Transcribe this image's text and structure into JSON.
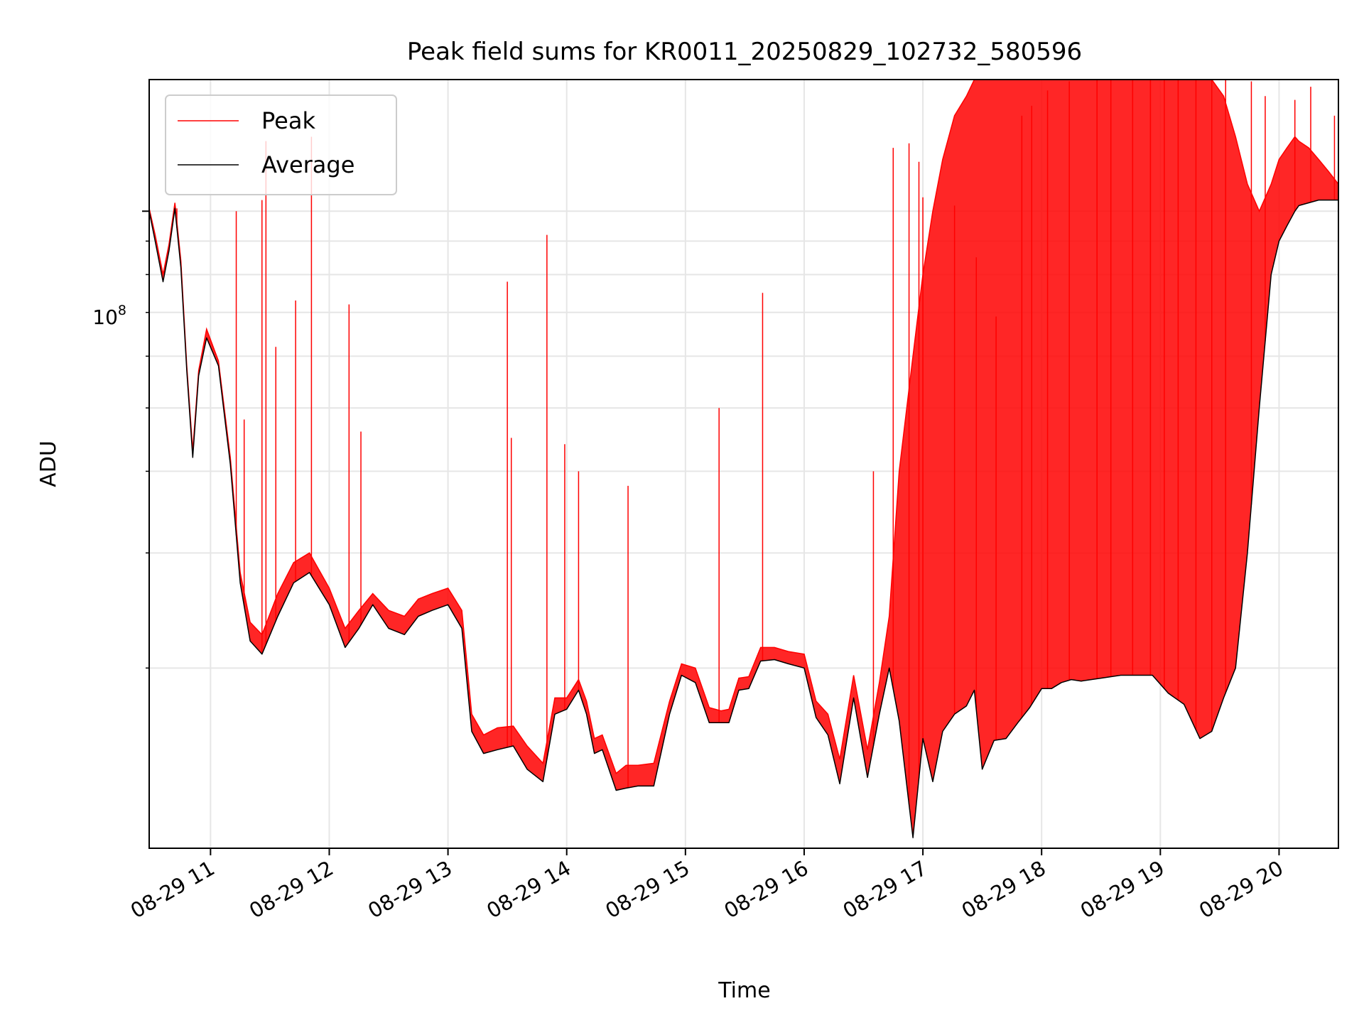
{
  "chart_data": {
    "type": "line",
    "title": "Peak field sums for KR0011_20250829_102732_580596",
    "xlabel": "Time",
    "ylabel": "ADU",
    "y_scale": "log",
    "ylim": [
      10600000,
      159000000
    ],
    "xlim": [
      "2025-08-29 10:29",
      "2025-08-29 20:30"
    ],
    "x_ticks": [
      "08-29 11",
      "08-29 12",
      "08-29 13",
      "08-29 14",
      "08-29 15",
      "08-29 16",
      "08-29 17",
      "08-29 18",
      "08-29 19",
      "08-29 20"
    ],
    "y_major_tick": {
      "base": "10",
      "exponent": "8",
      "value": 100000000
    },
    "y_minor_ticks": [
      20000000,
      30000000,
      40000000,
      50000000,
      60000000,
      70000000,
      80000000,
      90000000,
      200000000
    ],
    "grid": true,
    "legend": {
      "placement": "top-left",
      "entries": [
        {
          "label": "Peak",
          "color": "#ff0000"
        },
        {
          "label": "Average",
          "color": "#000000"
        }
      ]
    },
    "series": [
      {
        "name": "Average",
        "color": "#000000",
        "x": [
          "2025-08-29 10:29",
          "2025-08-29 10:32",
          "2025-08-29 10:36",
          "2025-08-29 10:39",
          "2025-08-29 10:42",
          "2025-08-29 10:45",
          "2025-08-29 10:48",
          "2025-08-29 10:51",
          "2025-08-29 10:54",
          "2025-08-29 10:58",
          "2025-08-29 11:04",
          "2025-08-29 11:10",
          "2025-08-29 11:15",
          "2025-08-29 11:20",
          "2025-08-29 11:26",
          "2025-08-29 11:34",
          "2025-08-29 11:42",
          "2025-08-29 11:50",
          "2025-08-29 12:00",
          "2025-08-29 12:08",
          "2025-08-29 12:15",
          "2025-08-29 12:22",
          "2025-08-29 12:30",
          "2025-08-29 12:38",
          "2025-08-29 12:45",
          "2025-08-29 12:52",
          "2025-08-29 13:00",
          "2025-08-29 13:07",
          "2025-08-29 13:12",
          "2025-08-29 13:18",
          "2025-08-29 13:25",
          "2025-08-29 13:33",
          "2025-08-29 13:40",
          "2025-08-29 13:48",
          "2025-08-29 13:54",
          "2025-08-29 14:00",
          "2025-08-29 14:06",
          "2025-08-29 14:10",
          "2025-08-29 14:14",
          "2025-08-29 14:18",
          "2025-08-29 14:25",
          "2025-08-29 14:30",
          "2025-08-29 14:36",
          "2025-08-29 14:44",
          "2025-08-29 14:52",
          "2025-08-29 14:58",
          "2025-08-29 15:05",
          "2025-08-29 15:12",
          "2025-08-29 15:18",
          "2025-08-29 15:22",
          "2025-08-29 15:27",
          "2025-08-29 15:32",
          "2025-08-29 15:38",
          "2025-08-29 15:45",
          "2025-08-29 15:52",
          "2025-08-29 16:00",
          "2025-08-29 16:06",
          "2025-08-29 16:12",
          "2025-08-29 16:18",
          "2025-08-29 16:25",
          "2025-08-29 16:32",
          "2025-08-29 16:38",
          "2025-08-29 16:43",
          "2025-08-29 16:48",
          "2025-08-29 16:55",
          "2025-08-29 17:00",
          "2025-08-29 17:05",
          "2025-08-29 17:10",
          "2025-08-29 17:16",
          "2025-08-29 17:22",
          "2025-08-29 17:26",
          "2025-08-29 17:30",
          "2025-08-29 17:36",
          "2025-08-29 17:42",
          "2025-08-29 17:48",
          "2025-08-29 17:54",
          "2025-08-29 18:00",
          "2025-08-29 18:05",
          "2025-08-29 18:10",
          "2025-08-29 18:15",
          "2025-08-29 18:20",
          "2025-08-29 18:30",
          "2025-08-29 18:40",
          "2025-08-29 18:50",
          "2025-08-29 18:56",
          "2025-08-29 19:04",
          "2025-08-29 19:12",
          "2025-08-29 19:20",
          "2025-08-29 19:26",
          "2025-08-29 19:32",
          "2025-08-29 19:38",
          "2025-08-29 19:44",
          "2025-08-29 19:50",
          "2025-08-29 19:56",
          "2025-08-29 20:00",
          "2025-08-29 20:04",
          "2025-08-29 20:08",
          "2025-08-29 20:10",
          "2025-08-29 20:15",
          "2025-08-29 20:20",
          "2025-08-29 20:25",
          "2025-08-29 20:30"
        ],
        "values": [
          100000000,
          90000000,
          78000000,
          87000000,
          101000000,
          82000000,
          57000000,
          42000000,
          56000000,
          64000000,
          58000000,
          41000000,
          27000000,
          22000000,
          21000000,
          24000000,
          27000000,
          28000000,
          25000000,
          21500000,
          23000000,
          25000000,
          23000000,
          22500000,
          24000000,
          24500000,
          25000000,
          23000000,
          16000000,
          14800000,
          15000000,
          15200000,
          14000000,
          13400000,
          17000000,
          17300000,
          18500000,
          17000000,
          14800000,
          15000000,
          13000000,
          13100000,
          13200000,
          13200000,
          17000000,
          19500000,
          19000000,
          16500000,
          16500000,
          16500000,
          18500000,
          18600000,
          20500000,
          20600000,
          20300000,
          20000000,
          16800000,
          15800000,
          13300000,
          18000000,
          13600000,
          17000000,
          20000000,
          16600000,
          11000000,
          15600000,
          13400000,
          16000000,
          17000000,
          17500000,
          18500000,
          14000000,
          15500000,
          15600000,
          16500000,
          17400000,
          18600000,
          18600000,
          19000000,
          19200000,
          19100000,
          19300000,
          19500000,
          19500000,
          19500000,
          18300000,
          17600000,
          15600000,
          16000000,
          18000000,
          20000000,
          30000000,
          50000000,
          80000000,
          90000000,
          95000000,
          100000000,
          102000000,
          103000000,
          104000000,
          104000000,
          104000000
        ]
      },
      {
        "name": "Peak",
        "color": "#ff0000",
        "x": [
          "2025-08-29 10:29",
          "2025-08-29 10:32",
          "2025-08-29 10:36",
          "2025-08-29 10:39",
          "2025-08-29 10:42",
          "2025-08-29 10:45",
          "2025-08-29 10:48",
          "2025-08-29 10:51",
          "2025-08-29 10:54",
          "2025-08-29 10:58",
          "2025-08-29 11:04",
          "2025-08-29 11:10",
          "2025-08-29 11:15",
          "2025-08-29 11:20",
          "2025-08-29 11:26",
          "2025-08-29 11:34",
          "2025-08-29 11:42",
          "2025-08-29 11:50",
          "2025-08-29 12:00",
          "2025-08-29 12:08",
          "2025-08-29 12:15",
          "2025-08-29 12:22",
          "2025-08-29 12:30",
          "2025-08-29 12:38",
          "2025-08-29 12:45",
          "2025-08-29 12:52",
          "2025-08-29 13:00",
          "2025-08-29 13:07",
          "2025-08-29 13:12",
          "2025-08-29 13:18",
          "2025-08-29 13:25",
          "2025-08-29 13:33",
          "2025-08-29 13:40",
          "2025-08-29 13:48",
          "2025-08-29 13:54",
          "2025-08-29 14:00",
          "2025-08-29 14:06",
          "2025-08-29 14:10",
          "2025-08-29 14:14",
          "2025-08-29 14:18",
          "2025-08-29 14:25",
          "2025-08-29 14:30",
          "2025-08-29 14:36",
          "2025-08-29 14:44",
          "2025-08-29 14:52",
          "2025-08-29 14:58",
          "2025-08-29 15:05",
          "2025-08-29 15:12",
          "2025-08-29 15:18",
          "2025-08-29 15:22",
          "2025-08-29 15:27",
          "2025-08-29 15:32",
          "2025-08-29 15:38",
          "2025-08-29 15:45",
          "2025-08-29 15:52",
          "2025-08-29 16:00",
          "2025-08-29 16:06",
          "2025-08-29 16:12",
          "2025-08-29 16:18",
          "2025-08-29 16:25",
          "2025-08-29 16:32",
          "2025-08-29 16:38",
          "2025-08-29 16:43",
          "2025-08-29 16:48",
          "2025-08-29 16:55",
          "2025-08-29 17:00",
          "2025-08-29 17:05",
          "2025-08-29 17:10",
          "2025-08-29 17:16",
          "2025-08-29 17:22",
          "2025-08-29 17:26",
          "2025-08-29 17:30",
          "2025-08-29 17:36",
          "2025-08-29 17:42",
          "2025-08-29 17:48",
          "2025-08-29 17:54",
          "2025-08-29 18:00",
          "2025-08-29 18:05",
          "2025-08-29 18:10",
          "2025-08-29 18:15",
          "2025-08-29 18:20",
          "2025-08-29 18:30",
          "2025-08-29 18:40",
          "2025-08-29 18:50",
          "2025-08-29 18:56",
          "2025-08-29 19:04",
          "2025-08-29 19:12",
          "2025-08-29 19:20",
          "2025-08-29 19:26",
          "2025-08-29 19:32",
          "2025-08-29 19:38",
          "2025-08-29 19:44",
          "2025-08-29 19:50",
          "2025-08-29 19:56",
          "2025-08-29 20:00",
          "2025-08-29 20:04",
          "2025-08-29 20:08",
          "2025-08-29 20:10",
          "2025-08-29 20:15",
          "2025-08-29 20:20",
          "2025-08-29 20:25",
          "2025-08-29 20:30"
        ],
        "values": [
          101000000,
          92000000,
          80000000,
          89000000,
          103000000,
          84000000,
          58000000,
          43000000,
          57000000,
          66000000,
          59000000,
          42000000,
          28000000,
          23500000,
          22500000,
          26000000,
          29000000,
          30000000,
          26500000,
          23000000,
          24500000,
          26000000,
          24500000,
          24000000,
          25500000,
          26000000,
          26500000,
          24500000,
          17000000,
          15800000,
          16200000,
          16300000,
          15200000,
          14300000,
          18000000,
          18000000,
          19200000,
          17800000,
          15600000,
          15800000,
          13800000,
          14200000,
          14200000,
          14300000,
          17800000,
          20300000,
          20000000,
          17400000,
          17200000,
          17300000,
          19300000,
          19400000,
          21500000,
          21500000,
          21200000,
          21000000,
          17800000,
          17000000,
          14500000,
          19500000,
          15000000,
          19000000,
          24000000,
          40000000,
          60000000,
          80000000,
          100000000,
          120000000,
          140000000,
          150000000,
          159000000,
          159000000,
          159000000,
          159000000,
          159000000,
          159000000,
          159000000,
          159000000,
          159000000,
          159000000,
          159000000,
          159000000,
          159000000,
          159000000,
          159000000,
          159000000,
          159000000,
          159000000,
          159000000,
          150000000,
          130000000,
          110000000,
          100000000,
          110000000,
          120000000,
          125000000,
          130000000,
          128000000,
          125000000,
          120000000,
          115000000,
          110000000
        ]
      }
    ],
    "spikes": {
      "name": "Peak",
      "color": "#ff0000",
      "x": [
        "2025-08-29 10:43",
        "2025-08-29 11:13",
        "2025-08-29 11:17",
        "2025-08-29 11:26",
        "2025-08-29 11:28",
        "2025-08-29 11:33",
        "2025-08-29 11:43",
        "2025-08-29 11:51",
        "2025-08-29 12:10",
        "2025-08-29 12:16",
        "2025-08-29 13:30",
        "2025-08-29 13:32",
        "2025-08-29 13:50",
        "2025-08-29 13:59",
        "2025-08-29 14:06",
        "2025-08-29 14:31",
        "2025-08-29 15:17",
        "2025-08-29 15:39",
        "2025-08-29 16:35",
        "2025-08-29 16:45",
        "2025-08-29 16:53",
        "2025-08-29 16:58",
        "2025-08-29 17:00",
        "2025-08-29 17:16",
        "2025-08-29 17:27",
        "2025-08-29 17:37",
        "2025-08-29 17:50",
        "2025-08-29 17:55",
        "2025-08-29 18:03",
        "2025-08-29 18:14",
        "2025-08-29 18:28",
        "2025-08-29 18:35",
        "2025-08-29 18:46",
        "2025-08-29 18:55",
        "2025-08-29 19:02",
        "2025-08-29 19:09",
        "2025-08-29 19:18",
        "2025-08-29 19:26",
        "2025-08-29 19:33",
        "2025-08-29 19:46",
        "2025-08-29 19:53",
        "2025-08-29 20:08",
        "2025-08-29 20:16",
        "2025-08-29 20:28"
      ],
      "values": [
        101000000,
        100000000,
        48000000,
        104000000,
        128000000,
        62000000,
        73000000,
        130000000,
        72000000,
        46000000,
        78000000,
        45000000,
        92000000,
        44000000,
        40000000,
        38000000,
        50000000,
        75000000,
        40000000,
        125000000,
        127000000,
        119000000,
        105000000,
        102000000,
        85000000,
        69000000,
        140000000,
        145000000,
        153000000,
        158000000,
        159000000,
        159000000,
        159000000,
        159000000,
        159000000,
        159000000,
        159000000,
        159000000,
        159000000,
        158000000,
        150000000,
        148000000,
        155000000,
        140000000
      ]
    }
  }
}
